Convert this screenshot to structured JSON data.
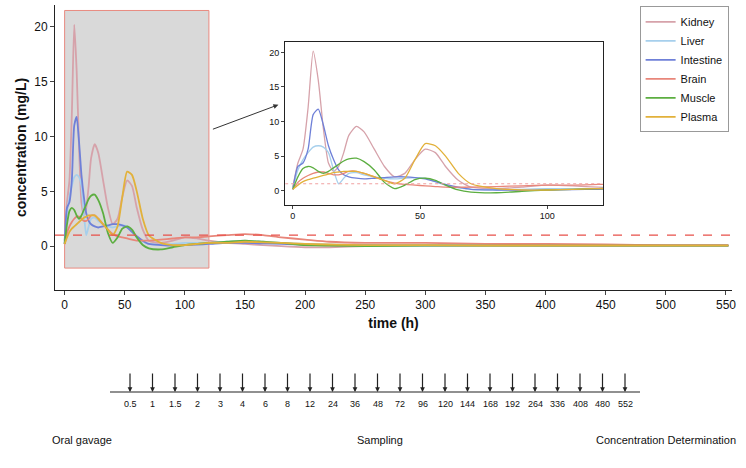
{
  "chart_data": {
    "type": "line",
    "x_label": "time (h)",
    "y_label": "concentration (mg/L)",
    "x": [
      0,
      2,
      4,
      6,
      8,
      10,
      12,
      14,
      16,
      18,
      20,
      22,
      25,
      28,
      32,
      36,
      40,
      44,
      48,
      52,
      56,
      60,
      65,
      70,
      80,
      90,
      100,
      110,
      120,
      135,
      150,
      165,
      180,
      200,
      220,
      250,
      300,
      350,
      400,
      450,
      500,
      552
    ],
    "series": [
      {
        "name": "Kidney",
        "color": "#d6a2aa",
        "values": [
          0.5,
          4,
          6,
          12,
          20.2,
          16,
          9,
          4,
          2.8,
          3.5,
          5.5,
          8,
          9.3,
          8.5,
          6,
          3.5,
          2,
          2.5,
          4.5,
          6,
          5.5,
          3.5,
          1.5,
          0.5,
          0.3,
          0.5,
          0.8,
          0.7,
          0.5,
          0.3,
          0.2,
          0.1,
          0,
          -0.1,
          -0.1,
          0,
          0.1,
          0.1,
          0.1,
          0.05,
          0.05,
          0.05
        ]
      },
      {
        "name": "Liver",
        "color": "#a6cfec",
        "values": [
          0.3,
          3,
          4.5,
          5.5,
          6.3,
          6.5,
          6.3,
          5.5,
          3,
          1,
          1.8,
          2.5,
          2.6,
          2.3,
          2,
          1.8,
          1.7,
          1.8,
          1.9,
          1.8,
          1.3,
          0.8,
          0.4,
          0.2,
          0.1,
          0.2,
          0.3,
          0.3,
          0.3,
          0.4,
          0.5,
          0.4,
          0.3,
          0.2,
          0.15,
          0.1,
          0.1,
          0.1,
          0.05,
          0.05,
          0.05,
          0.05
        ]
      },
      {
        "name": "Intestine",
        "color": "#6f80d8",
        "values": [
          0.2,
          3.5,
          4,
          6,
          11,
          11.8,
          9.5,
          6.5,
          4.5,
          3,
          2.3,
          2,
          1.8,
          1.7,
          1.8,
          1.9,
          2,
          2,
          1.9,
          1.7,
          1.3,
          0.9,
          0.5,
          0.2,
          0.1,
          0.05,
          0.1,
          0.15,
          0.2,
          0.3,
          0.3,
          0.25,
          0.2,
          0.15,
          0.1,
          0.1,
          0.05,
          0.05,
          0.05,
          0.05,
          0.05,
          0.05
        ]
      },
      {
        "name": "Brain",
        "color": "#e8867a",
        "values": [
          0.2,
          1.2,
          1.8,
          2.2,
          2.5,
          2.7,
          2.7,
          2.5,
          2.3,
          2.3,
          2.5,
          2.8,
          2.8,
          2.5,
          2,
          1.5,
          1.1,
          0.9,
          0.8,
          0.7,
          0.6,
          0.5,
          0.5,
          0.5,
          0.6,
          0.7,
          0.8,
          0.8,
          0.9,
          1.0,
          1.1,
          1.0,
          0.8,
          0.6,
          0.4,
          0.3,
          0.3,
          0.2,
          0.2,
          0.15,
          0.1,
          0.1
        ]
      },
      {
        "name": "Muscle",
        "color": "#5cae40",
        "values": [
          0.2,
          2,
          3.2,
          3.5,
          3.3,
          2.8,
          2.5,
          2.8,
          3.3,
          3.8,
          4.3,
          4.6,
          4.7,
          4.2,
          3,
          1.2,
          0.3,
          0.8,
          1.6,
          1.8,
          1.5,
          0.8,
          0.1,
          -0.2,
          -0.3,
          -0.1,
          0.1,
          0.2,
          0.3,
          0.4,
          0.5,
          0.4,
          0.3,
          0.1,
          0.05,
          0,
          0.05,
          0.05,
          0.05,
          0.05,
          0.05,
          0.05
        ]
      },
      {
        "name": "Plasma",
        "color": "#e2b13a",
        "values": [
          0.2,
          0.8,
          1.3,
          1.6,
          1.8,
          2,
          2.2,
          2.4,
          2.6,
          2.7,
          2.8,
          2.8,
          2.8,
          2.5,
          2,
          1.5,
          1.0,
          1.8,
          4.5,
          6.8,
          6.5,
          5,
          2.5,
          1.0,
          0.3,
          0.1,
          0.1,
          0.2,
          0.3,
          0.3,
          0.4,
          0.35,
          0.3,
          0.2,
          0.15,
          0.1,
          0.1,
          0.05,
          0.05,
          0.05,
          0.05,
          0.05
        ]
      }
    ],
    "xlim": [
      -8,
      555
    ],
    "xticks": [
      0,
      50,
      100,
      150,
      200,
      250,
      300,
      350,
      400,
      450,
      500,
      550
    ],
    "ylim": [
      -4,
      22
    ],
    "yticks": [
      0,
      5,
      10,
      15,
      20
    ],
    "grid": false,
    "legend": "top right",
    "threshold": 1,
    "highlight_x": [
      0,
      120
    ],
    "inset": {
      "xlim": [
        -3,
        122
      ],
      "ylim": [
        -2,
        21.5
      ],
      "xticks": [
        0,
        50,
        100
      ],
      "yticks": [
        0,
        5,
        10,
        15,
        20
      ]
    },
    "timeline": {
      "times": [
        0.5,
        1,
        1.5,
        2,
        3,
        4,
        6,
        8,
        12,
        24,
        36,
        48,
        72,
        96,
        120,
        144,
        168,
        192,
        264,
        336,
        408,
        480,
        552
      ],
      "labels": [
        "Oral gavage",
        "Sampling",
        "Concentration Determination"
      ]
    }
  }
}
